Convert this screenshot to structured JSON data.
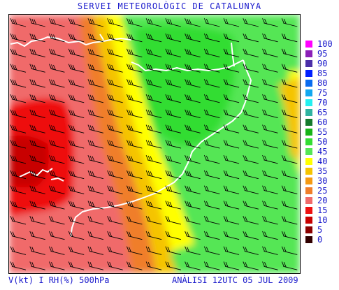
{
  "title": "SERVEI METEOROLÒGIC DE CATALUNYA",
  "footer": {
    "left": "V(kt) I RH(%) 500hPa",
    "right": "ANÀLISI 12UTC 05 JUL 2009"
  },
  "legend": [
    {
      "label": "100",
      "color": "#ff00ff"
    },
    {
      "label": "95",
      "color": "#8b1fb8"
    },
    {
      "label": "90",
      "color": "#4b2fa8"
    },
    {
      "label": "85",
      "color": "#0020ff"
    },
    {
      "label": "80",
      "color": "#0a6cf0"
    },
    {
      "label": "75",
      "color": "#12a8f0"
    },
    {
      "label": "70",
      "color": "#24f0f0"
    },
    {
      "label": "65",
      "color": "#2fb3a0"
    },
    {
      "label": "60",
      "color": "#147a2c"
    },
    {
      "label": "55",
      "color": "#17b417"
    },
    {
      "label": "50",
      "color": "#33dd33"
    },
    {
      "label": "45",
      "color": "#55e655"
    },
    {
      "label": "40",
      "color": "#ffff00"
    },
    {
      "label": "35",
      "color": "#f5c400"
    },
    {
      "label": "30",
      "color": "#f59a12"
    },
    {
      "label": "25",
      "color": "#f07e2a"
    },
    {
      "label": "20",
      "color": "#f06a6a"
    },
    {
      "label": "15",
      "color": "#ee1010"
    },
    {
      "label": "10",
      "color": "#c80000"
    },
    {
      "label": "5",
      "color": "#8b0000"
    },
    {
      "label": "0",
      "color": "#300000"
    }
  ]
}
